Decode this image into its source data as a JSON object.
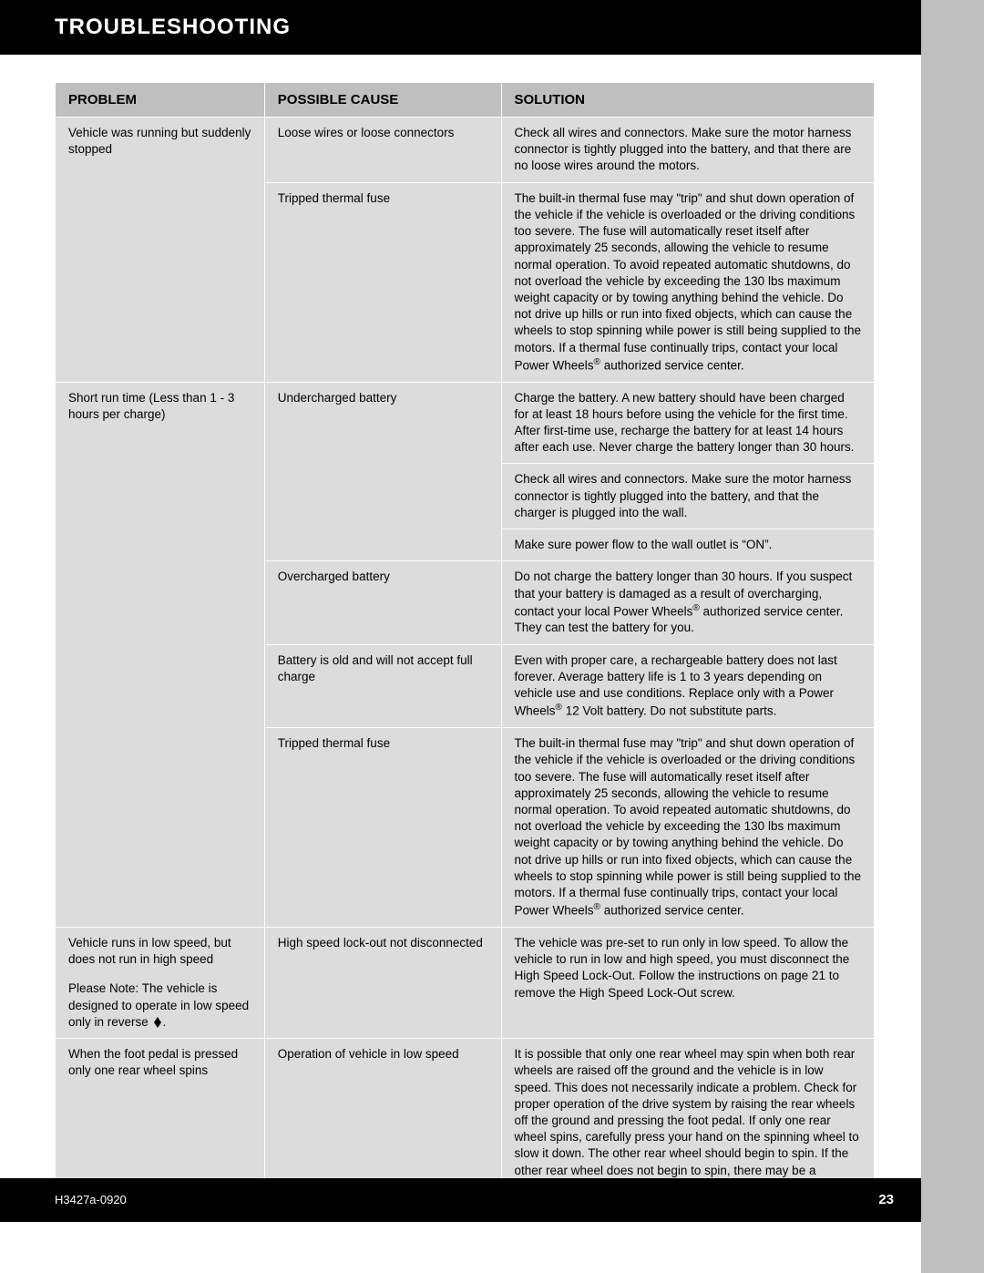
{
  "header": {
    "title": "TROUBLESHOOTING"
  },
  "columns": {
    "problem": "PROBLEM",
    "cause": "POSSIBLE CAUSE",
    "solution": "SOLUTION"
  },
  "rows": [
    {
      "problem": "Vehicle was running but suddenly stopped",
      "problem_rowspan": 2,
      "causes": [
        {
          "cause": "Loose wires or loose connectors",
          "solutions": [
            "Check all wires and connectors. Make sure the motor harness connector is tightly plugged into the battery, and that there are no loose wires around the motors."
          ]
        },
        {
          "cause": "Tripped thermal fuse",
          "solutions": [
            "The built-in thermal fuse may \"trip\" and shut down operation of the vehicle if the vehicle is overloaded or the driving conditions too severe. The fuse will automatically reset itself after approximately 25 seconds, allowing the vehicle to resume normal operation. To avoid repeated automatic shutdowns, do not overload the vehicle by exceeding the 130 lbs maximum weight capacity or by towing anything behind the vehicle. Do not drive up hills or run into fixed objects, which can cause the wheels to stop spinning while power is still being supplied to the motors. If a thermal fuse continually trips, contact your local Power Wheels® authorized service center."
          ]
        }
      ]
    },
    {
      "problem": "Short run time (Less than 1 - 3 hours per charge)",
      "problem_rowspan": 6,
      "causes": [
        {
          "cause": "Undercharged battery",
          "cause_rowspan": 3,
          "solutions": [
            "Charge the battery. A new battery should have been charged for at least 18 hours before using the vehicle for the first time. After first-time use, recharge the battery for at least 14 hours after each use. Never charge the battery longer than 30 hours.",
            "Check all wires and connectors. Make sure the motor harness connector is tightly plugged into the battery, and that the charger is plugged into the wall.",
            "Make sure power flow to the wall outlet is “ON”."
          ]
        },
        {
          "cause": "Overcharged battery",
          "solutions": [
            "Do not charge the battery longer than 30 hours. If you suspect that your battery is damaged as a result of overcharging, contact your local Power Wheels® authorized service center. They can test the battery for you."
          ]
        },
        {
          "cause": "Battery is old and will not accept full charge",
          "solutions": [
            "Even with proper care, a rechargeable battery does not last forever. Average battery life is 1 to 3 years depending on vehicle use and use conditions. Replace only with a Power Wheels® 12 Volt battery. Do not substitute parts."
          ]
        },
        {
          "cause": "Tripped thermal fuse",
          "solutions": [
            "The built-in thermal fuse may \"trip\" and shut down operation of the vehicle if the vehicle is overloaded or the driving conditions too severe. The fuse will automatically reset itself after approximately 25 seconds, allowing the vehicle to resume normal operation. To avoid repeated automatic shutdowns, do not overload the vehicle by exceeding the 130 lbs maximum weight capacity or by towing anything behind the vehicle. Do not drive up hills or run into fixed objects, which can cause the wheels to stop spinning while power is still being supplied to the motors. If a thermal fuse continually trips, contact your local Power Wheels® authorized service center."
          ]
        }
      ]
    },
    {
      "problem_html": "Vehicle runs in low speed, but does not run in high speed<div class='note-block'>Please Note: The vehicle is designed to operate in low speed only in reverse <svg class='r-icon' viewBox='0 0 12 12'><path d='M6 0 L2 6 L6 12 L10 6 Z' fill='#000'/></svg>.</div>",
      "problem_rowspan": 1,
      "causes": [
        {
          "cause": "High speed lock-out not disconnected",
          "solutions": [
            "The vehicle was pre-set to run only in low speed. To allow the vehicle to run in low and high speed, you must disconnect the High Speed Lock-Out. Follow the instructions on page 21 to remove the High Speed Lock-Out screw."
          ]
        }
      ]
    },
    {
      "problem": "When the foot pedal is pressed only one rear wheel spins",
      "problem_rowspan": 1,
      "causes": [
        {
          "cause": "Operation of vehicle in low speed",
          "solutions": [
            "It is possible that only one rear wheel may spin when both rear wheels are raised off the ground and the vehicle is in low speed. This does not necessarily indicate a problem. Check for proper operation of the drive system by raising the rear wheels off the ground and pressing the foot pedal. If only one rear wheel spins, carefully press your hand on the spinning wheel to slow it down. The other rear wheel should begin to spin. If the other rear wheel does not begin to spin, there may be a problem with the vehicle. Contact your local Power Wheels® authorized service center for diagnosis and repair."
          ]
        }
      ]
    }
  ],
  "footer": {
    "code": "H3427a-0920",
    "page": "23"
  }
}
